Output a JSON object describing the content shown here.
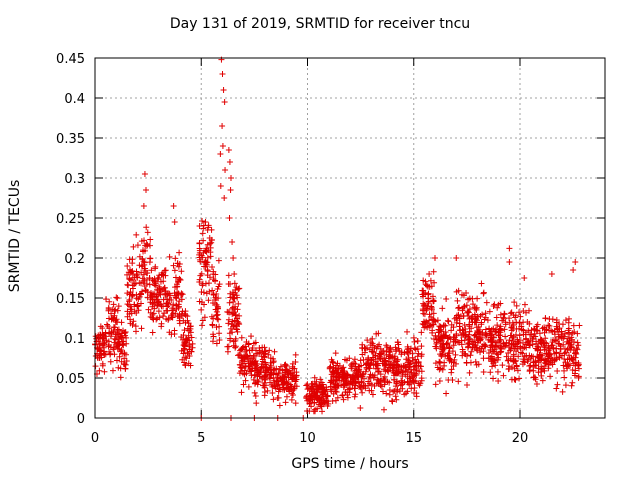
{
  "chart_data": {
    "type": "scatter",
    "title": "Day 131 of 2019, SRMTID for receiver tncu",
    "xlabel": "GPS time / hours",
    "ylabel": "SRMTID / TECUs",
    "xlim": [
      0,
      24
    ],
    "ylim": [
      0,
      0.45
    ],
    "x_ticks": [
      0,
      5,
      10,
      15,
      20
    ],
    "x_tick_labels": [
      "0",
      "5",
      "10",
      "15",
      "20"
    ],
    "y_ticks": [
      0,
      0.05,
      0.1,
      0.15,
      0.2,
      0.25,
      0.3,
      0.35,
      0.4,
      0.45
    ],
    "y_tick_labels": [
      "0",
      "0.05",
      "0.1",
      "0.15",
      "0.2",
      "0.25",
      "0.3",
      "0.35",
      "0.4",
      "0.45"
    ],
    "grid": true,
    "marker": "+",
    "series": [
      {
        "name": "SRMTID",
        "color": "#e00000",
        "segments": [
          {
            "x_start": 0.0,
            "x_end": 0.5,
            "mean": 0.09,
            "spread": 0.025
          },
          {
            "x_start": 0.5,
            "x_end": 1.2,
            "mean": 0.11,
            "spread": 0.035
          },
          {
            "x_start": 1.2,
            "x_end": 1.5,
            "mean": 0.09,
            "spread": 0.03
          },
          {
            "x_start": 1.5,
            "x_end": 2.2,
            "mean": 0.16,
            "spread": 0.035
          },
          {
            "x_start": 2.2,
            "x_end": 2.6,
            "mean": 0.19,
            "spread": 0.045
          },
          {
            "x_start": 2.6,
            "x_end": 3.5,
            "mean": 0.15,
            "spread": 0.035
          },
          {
            "x_start": 3.5,
            "x_end": 4.1,
            "mean": 0.15,
            "spread": 0.05
          },
          {
            "x_start": 4.1,
            "x_end": 4.6,
            "mean": 0.1,
            "spread": 0.03
          },
          {
            "x_start": 4.9,
            "x_end": 5.5,
            "mean": 0.19,
            "spread": 0.045
          },
          {
            "x_start": 5.5,
            "x_end": 5.9,
            "mean": 0.14,
            "spread": 0.04
          },
          {
            "x_start": 6.2,
            "x_end": 6.8,
            "mean": 0.13,
            "spread": 0.04
          },
          {
            "x_start": 6.8,
            "x_end": 7.5,
            "mean": 0.07,
            "spread": 0.025
          },
          {
            "x_start": 7.5,
            "x_end": 8.5,
            "mean": 0.06,
            "spread": 0.025
          },
          {
            "x_start": 8.5,
            "x_end": 9.5,
            "mean": 0.045,
            "spread": 0.02
          },
          {
            "x_start": 9.9,
            "x_end": 11.0,
            "mean": 0.03,
            "spread": 0.018
          },
          {
            "x_start": 11.0,
            "x_end": 12.5,
            "mean": 0.05,
            "spread": 0.02
          },
          {
            "x_start": 12.5,
            "x_end": 15.4,
            "mean": 0.065,
            "spread": 0.03
          },
          {
            "x_start": 15.4,
            "x_end": 16.0,
            "mean": 0.14,
            "spread": 0.035
          },
          {
            "x_start": 16.0,
            "x_end": 17.0,
            "mean": 0.09,
            "spread": 0.035
          },
          {
            "x_start": 17.0,
            "x_end": 18.5,
            "mean": 0.11,
            "spread": 0.04
          },
          {
            "x_start": 18.5,
            "x_end": 20.5,
            "mean": 0.095,
            "spread": 0.035
          },
          {
            "x_start": 20.5,
            "x_end": 22.8,
            "mean": 0.085,
            "spread": 0.035
          }
        ],
        "spike_points": [
          [
            2.35,
            0.305
          ],
          [
            2.4,
            0.285
          ],
          [
            2.3,
            0.265
          ],
          [
            3.7,
            0.265
          ],
          [
            3.75,
            0.245
          ],
          [
            5.95,
            0.448
          ],
          [
            6.0,
            0.43
          ],
          [
            6.05,
            0.41
          ],
          [
            6.1,
            0.395
          ],
          [
            5.98,
            0.365
          ],
          [
            6.02,
            0.34
          ],
          [
            5.9,
            0.33
          ],
          [
            6.12,
            0.31
          ],
          [
            5.92,
            0.29
          ],
          [
            6.08,
            0.275
          ],
          [
            6.3,
            0.335
          ],
          [
            6.35,
            0.32
          ],
          [
            6.4,
            0.3
          ],
          [
            6.38,
            0.285
          ],
          [
            6.33,
            0.25
          ],
          [
            6.45,
            0.22
          ],
          [
            6.5,
            0.2
          ],
          [
            6.55,
            0.18
          ],
          [
            6.6,
            0.16
          ],
          [
            6.5,
            0.145
          ],
          [
            5.2,
            0.245
          ],
          [
            5.3,
            0.235
          ],
          [
            5.25,
            0.21
          ],
          [
            5.4,
            0.225
          ],
          [
            16.0,
            0.2
          ],
          [
            17.0,
            0.2
          ],
          [
            19.5,
            0.212
          ],
          [
            19.5,
            0.195
          ],
          [
            22.6,
            0.195
          ],
          [
            22.5,
            0.185
          ],
          [
            21.5,
            0.18
          ],
          [
            20.2,
            0.175
          ]
        ],
        "zero_points": [
          5.0,
          6.4,
          7.5,
          8.6,
          9.8
        ]
      }
    ]
  }
}
